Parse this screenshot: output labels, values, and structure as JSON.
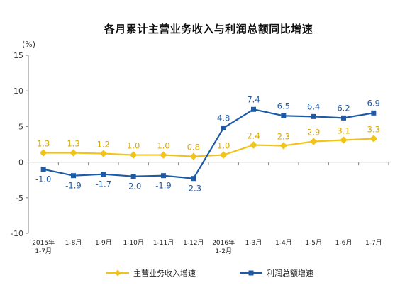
{
  "chart_data": {
    "type": "line",
    "title": "各月累计主营业务收入与利润总额同比增速",
    "ylabel": "(%)",
    "ylim": [
      -10,
      15
    ],
    "yticks": [
      -10,
      -5,
      0,
      5,
      10,
      15
    ],
    "grid": false,
    "legend_position": "bottom",
    "categories": [
      [
        "2015年",
        "1-7月"
      ],
      [
        "1-8月"
      ],
      [
        "1-9月"
      ],
      [
        "1-10月"
      ],
      [
        "1-11月"
      ],
      [
        "1-12月"
      ],
      [
        "2016年",
        "1-2月"
      ],
      [
        "1-3月"
      ],
      [
        "1-4月"
      ],
      [
        "1-5月"
      ],
      [
        "1-6月"
      ],
      [
        "1-7月"
      ]
    ],
    "series": [
      {
        "name": "主营业务收入增速",
        "color": "#f0c419",
        "label_color": "#d9a800",
        "marker": "diamond",
        "values": [
          1.3,
          1.3,
          1.2,
          1.0,
          1.0,
          0.8,
          1.0,
          2.4,
          2.3,
          2.9,
          3.1,
          3.3
        ],
        "labels": [
          "1.3",
          "1.3",
          "1.2",
          "1.0",
          "1.0",
          "0.8",
          "1.0",
          "2.4",
          "2.3",
          "2.9",
          "3.1",
          "3.3"
        ]
      },
      {
        "name": "利润总额增速",
        "color": "#1f5aa6",
        "label_color": "#1f5aa6",
        "marker": "square",
        "values": [
          -1.0,
          -1.9,
          -1.7,
          -2.0,
          -1.9,
          -2.3,
          4.8,
          7.4,
          6.5,
          6.4,
          6.2,
          6.9
        ],
        "labels": [
          "-1.0",
          "-1.9",
          "-1.7",
          "-2.0",
          "-1.9",
          "-2.3",
          "4.8",
          "7.4",
          "6.5",
          "6.4",
          "6.2",
          "6.9"
        ]
      }
    ]
  }
}
